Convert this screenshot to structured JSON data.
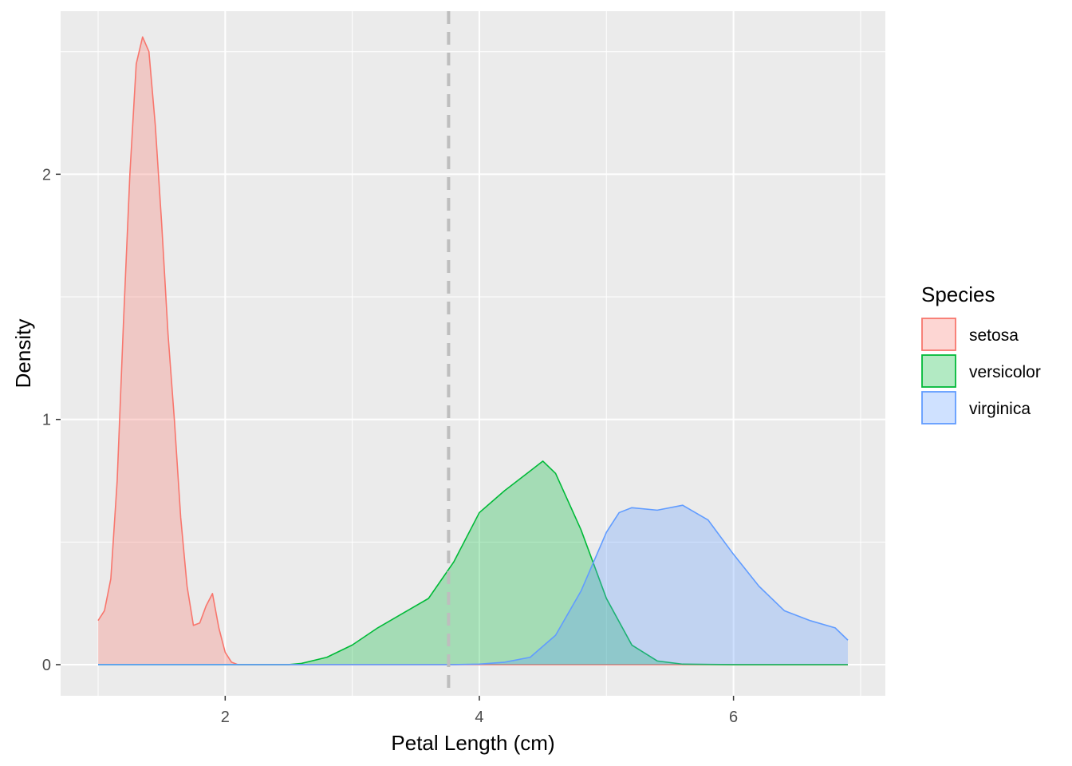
{
  "chart_data": {
    "type": "area",
    "subtype": "density",
    "title": "",
    "xlabel": "Petal Length (cm)",
    "ylabel": "Density",
    "xlim": [
      0.705,
      7.195
    ],
    "ylim": [
      -0.127,
      2.665
    ],
    "x_ticks": [
      2,
      4,
      6
    ],
    "y_ticks": [
      0,
      1,
      2
    ],
    "grid": true,
    "reference_line": {
      "x": 3.758,
      "style": "dashed",
      "color": "#bebebe"
    },
    "legend": {
      "title": "Species",
      "placement": "right",
      "entries": [
        "setosa",
        "versicolor",
        "virginica"
      ]
    },
    "series": [
      {
        "name": "setosa",
        "fill": "#f8766d",
        "line": "#f8766d",
        "x": [
          1.0,
          1.05,
          1.1,
          1.15,
          1.2,
          1.25,
          1.3,
          1.35,
          1.4,
          1.45,
          1.5,
          1.55,
          1.6,
          1.65,
          1.7,
          1.75,
          1.8,
          1.85,
          1.9,
          1.95,
          2.0,
          2.05,
          2.1,
          2.2,
          2.5,
          3.0,
          4.0,
          5.0,
          6.0,
          6.9
        ],
        "values": [
          0.18,
          0.22,
          0.35,
          0.75,
          1.4,
          2.0,
          2.45,
          2.56,
          2.5,
          2.2,
          1.8,
          1.35,
          1.0,
          0.6,
          0.32,
          0.16,
          0.17,
          0.24,
          0.29,
          0.15,
          0.05,
          0.01,
          0.0,
          0.0,
          0.0,
          0.0,
          0.0,
          0.0,
          0.0,
          0.0
        ]
      },
      {
        "name": "versicolor",
        "fill": "#00ba38",
        "line": "#00ba38",
        "x": [
          1.0,
          2.5,
          2.6,
          2.8,
          3.0,
          3.2,
          3.4,
          3.6,
          3.8,
          4.0,
          4.2,
          4.4,
          4.5,
          4.6,
          4.8,
          5.0,
          5.2,
          5.4,
          5.6,
          6.0,
          6.9
        ],
        "values": [
          0.0,
          0.0,
          0.005,
          0.03,
          0.08,
          0.15,
          0.21,
          0.27,
          0.42,
          0.62,
          0.71,
          0.79,
          0.83,
          0.78,
          0.55,
          0.27,
          0.08,
          0.015,
          0.002,
          0.0,
          0.0
        ]
      },
      {
        "name": "virginica",
        "fill": "#619cff",
        "line": "#619cff",
        "x": [
          1.0,
          3.5,
          3.8,
          4.0,
          4.2,
          4.4,
          4.6,
          4.8,
          5.0,
          5.1,
          5.2,
          5.4,
          5.6,
          5.8,
          6.0,
          6.2,
          6.4,
          6.6,
          6.8,
          6.9
        ],
        "values": [
          0.0,
          0.0,
          0.0,
          0.002,
          0.01,
          0.03,
          0.12,
          0.3,
          0.54,
          0.62,
          0.64,
          0.63,
          0.65,
          0.59,
          0.45,
          0.32,
          0.22,
          0.18,
          0.15,
          0.1
        ]
      }
    ]
  }
}
